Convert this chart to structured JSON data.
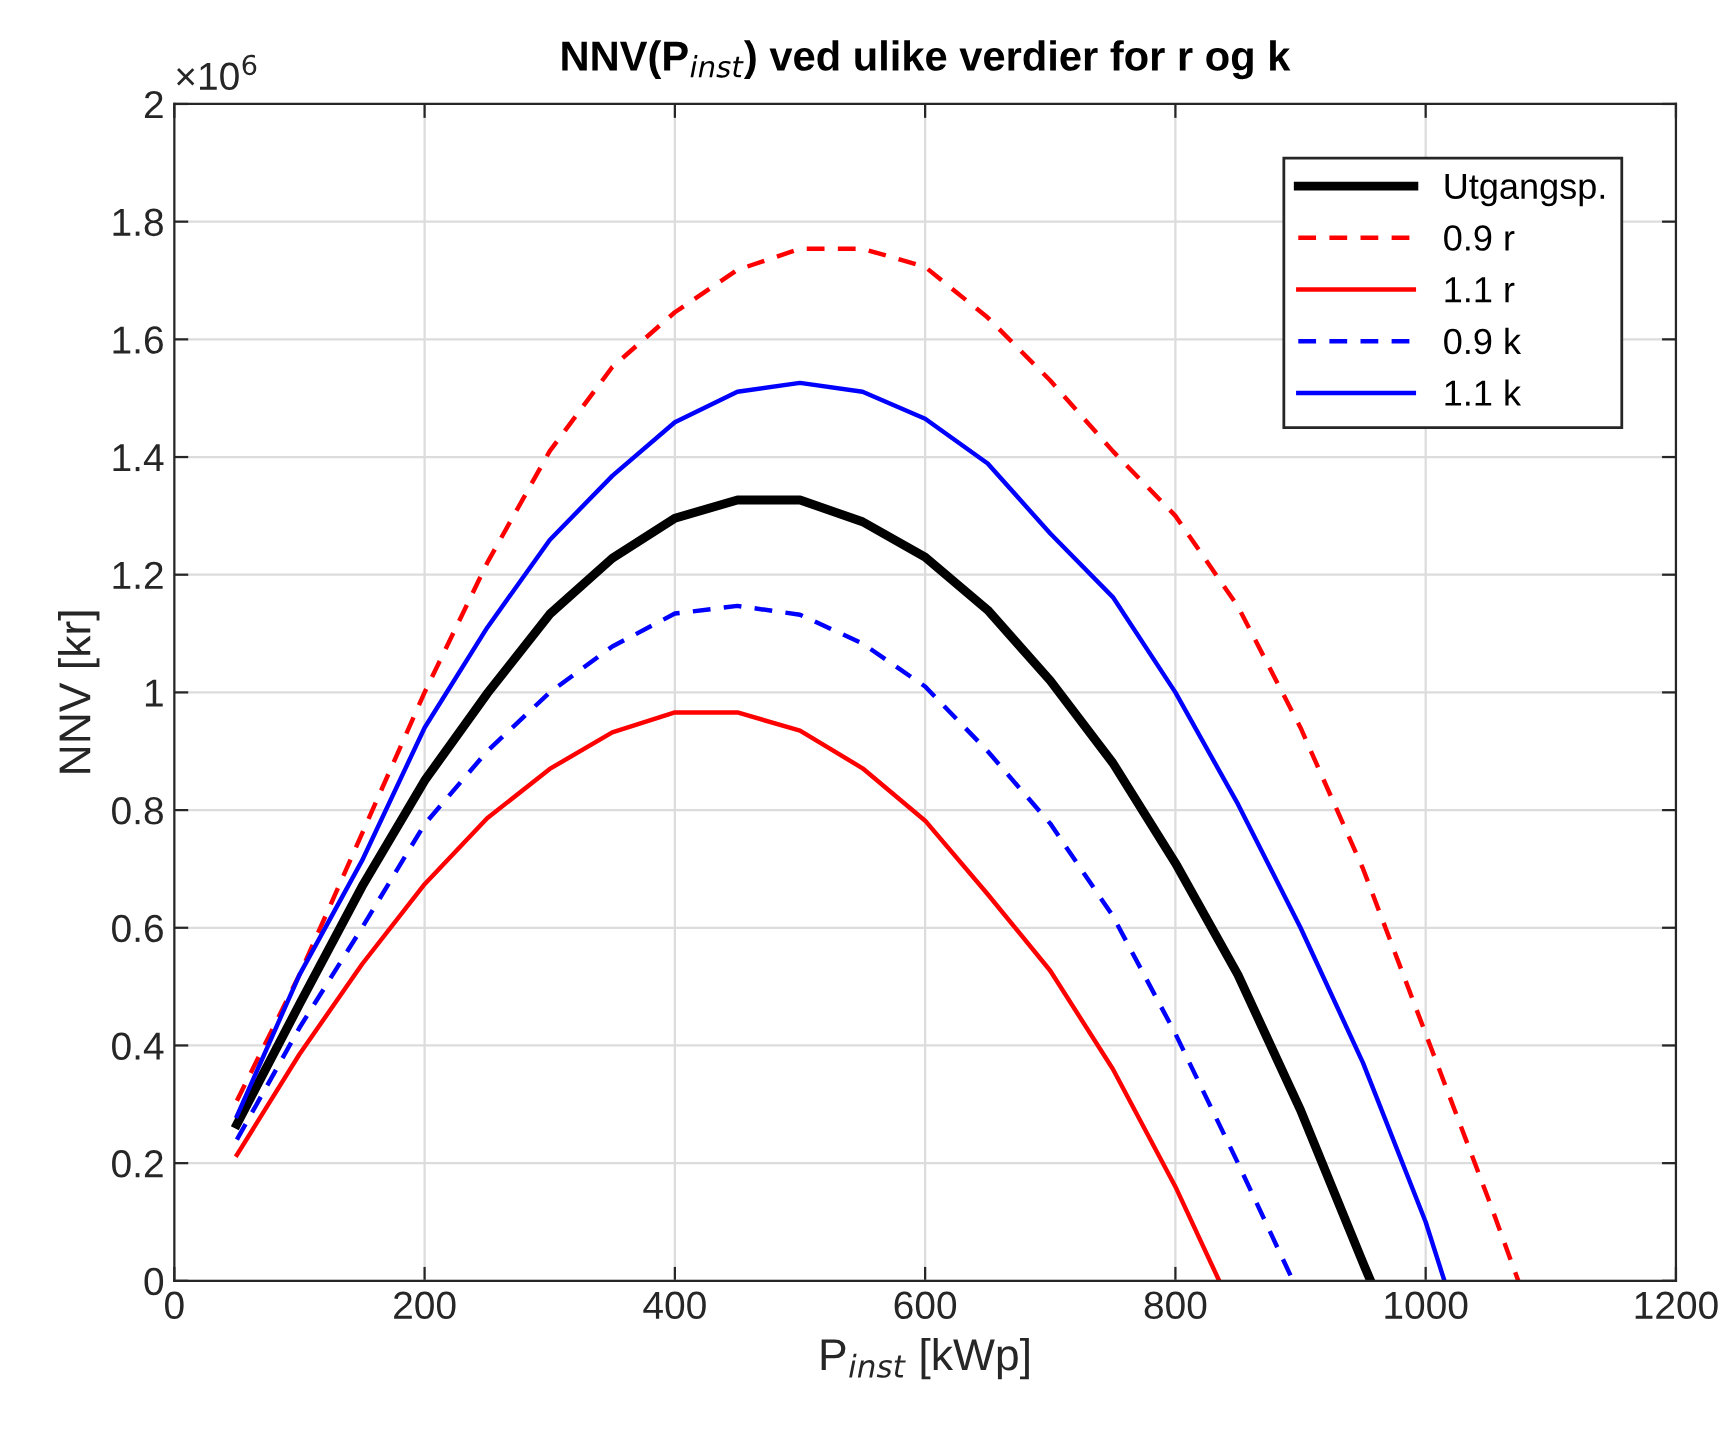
{
  "chart_data": {
    "type": "line",
    "title": "NNV(P$_{inst}$) ved ulike verdier for r og k",
    "xlabel": "P$_{inst}$ [kWp]",
    "ylabel": "NNV [kr]",
    "annotations": [
      "×10$^{6}$"
    ],
    "xlim": [
      0,
      1200
    ],
    "xticks": [
      0,
      200,
      400,
      600,
      800,
      1000,
      1200
    ],
    "ylim": [
      0,
      2
    ],
    "yticks": [
      0,
      0.2,
      0.4,
      0.6,
      0.8,
      1,
      1.2,
      1.4,
      1.6,
      1.8,
      2
    ],
    "grid": true,
    "legend": "top right",
    "series": [
      {
        "name": "Utgangsp.",
        "color": "#000000",
        "line_style": "solid",
        "x": [
          50,
          100,
          150,
          200,
          250,
          300,
          350,
          400,
          450,
          500,
          550,
          600,
          650,
          700,
          750,
          800,
          850,
          900,
          950,
          956
        ],
        "values": [
          0.266,
          0.47,
          0.67,
          0.85,
          0.998,
          1.133,
          1.228,
          1.296,
          1.327,
          1.327,
          1.29,
          1.23,
          1.14,
          1.02,
          0.88,
          0.71,
          0.52,
          0.29,
          0.03,
          0
        ]
      },
      {
        "name": "0.9 r",
        "color": "#ff0000",
        "line_style": "dashed",
        "x": [
          50,
          100,
          150,
          200,
          250,
          300,
          350,
          400,
          450,
          500,
          550,
          600,
          650,
          700,
          750,
          800,
          850,
          900,
          950,
          1000,
          1050,
          1074
        ],
        "values": [
          0.306,
          0.52,
          0.76,
          1.0,
          1.22,
          1.41,
          1.553,
          1.646,
          1.718,
          1.754,
          1.754,
          1.723,
          1.637,
          1.53,
          1.41,
          1.3,
          1.146,
          0.94,
          0.7,
          0.42,
          0.14,
          0
        ]
      },
      {
        "name": "1.1 r",
        "color": "#ff0000",
        "line_style": "solid",
        "x": [
          50,
          100,
          150,
          200,
          250,
          300,
          350,
          400,
          450,
          500,
          550,
          600,
          650,
          700,
          750,
          800,
          835
        ],
        "values": [
          0.214,
          0.385,
          0.538,
          0.674,
          0.786,
          0.87,
          0.932,
          0.966,
          0.966,
          0.935,
          0.871,
          0.782,
          0.657,
          0.527,
          0.36,
          0.16,
          0
        ]
      },
      {
        "name": "0.9 k",
        "color": "#0000ff",
        "line_style": "dashed",
        "x": [
          50,
          100,
          150,
          200,
          250,
          300,
          350,
          400,
          450,
          500,
          550,
          600,
          650,
          700,
          750,
          800,
          850,
          894
        ],
        "values": [
          0.24,
          0.43,
          0.6,
          0.776,
          0.9,
          1.0,
          1.078,
          1.134,
          1.147,
          1.132,
          1.083,
          1.01,
          0.9,
          0.777,
          0.62,
          0.42,
          0.2,
          0
        ]
      },
      {
        "name": "1.1 k",
        "color": "#0000ff",
        "line_style": "solid",
        "x": [
          50,
          100,
          150,
          200,
          250,
          300,
          350,
          400,
          450,
          500,
          550,
          600,
          650,
          700,
          750,
          800,
          850,
          900,
          950,
          1000,
          1015
        ],
        "values": [
          0.28,
          0.52,
          0.714,
          0.94,
          1.11,
          1.259,
          1.368,
          1.459,
          1.511,
          1.526,
          1.511,
          1.465,
          1.389,
          1.27,
          1.162,
          1.0,
          0.81,
          0.6,
          0.37,
          0.1,
          0
        ]
      }
    ]
  }
}
